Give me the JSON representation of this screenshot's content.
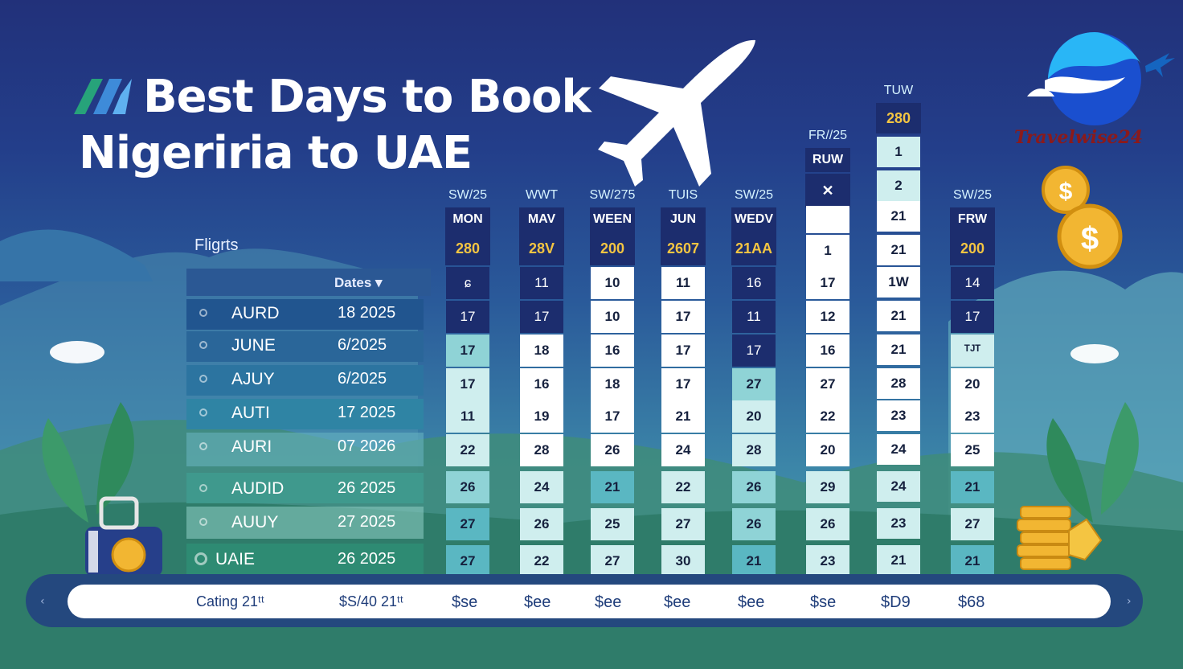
{
  "title": {
    "line1": "Best Days to Book",
    "line2": "Nigeriria to UAE"
  },
  "brand": "Travelwise24",
  "flights_label": "Fligrts",
  "left_table": {
    "header": "Dates ▾",
    "rows": [
      {
        "month": "AURD",
        "date": "18 2025"
      },
      {
        "month": "JUNE",
        "date": "6/2025"
      },
      {
        "month": "AJUY",
        "date": "6/2025"
      },
      {
        "month": "AUTI",
        "date": "17 2025"
      },
      {
        "month": "AURI",
        "date": "07 2026"
      },
      {
        "month": "AUDID",
        "date": "26 2025"
      },
      {
        "month": "AUUY",
        "date": "27 2025"
      },
      {
        "month": "UAIE",
        "date": "26 2025"
      }
    ]
  },
  "columns": [
    {
      "top": "SW/25",
      "day": "MON",
      "price": "280",
      "cells": [
        "ɕ",
        "17",
        "17",
        "17",
        "11",
        "22",
        "26",
        "27",
        "27"
      ]
    },
    {
      "top": "WWT",
      "day": "MAV",
      "price": "28V",
      "cells": [
        "11",
        "17",
        "18",
        "16",
        "19",
        "28",
        "24",
        "26",
        "22"
      ]
    },
    {
      "top": "SW/275",
      "day": "WEEN",
      "price": "200",
      "cells": [
        "10",
        "10",
        "16",
        "18",
        "17",
        "26",
        "21",
        "25",
        "27"
      ]
    },
    {
      "top": "TUIS",
      "day": "JUN",
      "price": "2607",
      "cells": [
        "11",
        "17",
        "17",
        "17",
        "21",
        "24",
        "22",
        "27",
        "30"
      ]
    },
    {
      "top": "SW/25",
      "day": "WEDV",
      "price": "21AA",
      "cells": [
        "16",
        "11",
        "17",
        "27",
        "20",
        "28",
        "26",
        "26",
        "21"
      ]
    },
    {
      "top": "FR//25",
      "day": "RUW",
      "price": "✕",
      "cells": [
        "",
        "1",
        "17",
        "12",
        "16",
        "27",
        "22",
        "20",
        "29",
        "26",
        "23"
      ]
    },
    {
      "top": "TUW",
      "day": "",
      "price": "280",
      "cells": [
        "1",
        "2",
        "21",
        "21",
        "1W",
        "21",
        "21",
        "28",
        "23",
        "24",
        "24",
        "23",
        "21"
      ]
    },
    {
      "top": "SW/25",
      "day": "FRW",
      "price": "200",
      "cells": [
        "14",
        "17",
        "ᵀᴶᵀ",
        "20",
        "23",
        "25",
        "21",
        "27",
        "21"
      ]
    }
  ],
  "bottom_bar": {
    "items": [
      "Cating 21ᵗᵗ",
      "$S/40 21ᵗᵗ",
      "$se",
      "$ee",
      "$ee",
      "$ee",
      "$ee",
      "$se",
      "$D9",
      "$68"
    ]
  },
  "colors": {
    "navy": "#1c2d6e",
    "gold": "#f4c542",
    "teal": "#5ab7c2",
    "brand_red": "#8c1a1a"
  }
}
